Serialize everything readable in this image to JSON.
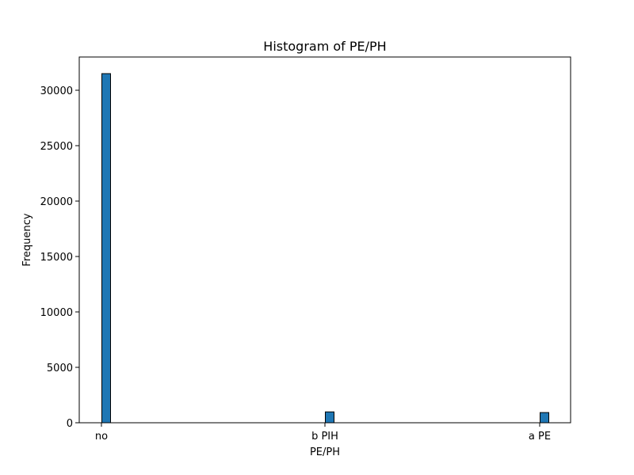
{
  "chart_data": {
    "type": "bar",
    "title": "Histogram of PE/PH",
    "xlabel": "PE/PH",
    "ylabel": "Frequency",
    "categories": [
      "no",
      "b PIH",
      "a PE"
    ],
    "values": [
      31500,
      980,
      920
    ],
    "ylim": [
      0,
      33000
    ],
    "yticks": [
      0,
      5000,
      10000,
      15000,
      20000,
      25000,
      30000
    ],
    "grid": false,
    "legend": "none",
    "colors": {
      "bar_fill": "#1f77b4",
      "bar_edge": "#000000",
      "axis": "#000000"
    }
  }
}
